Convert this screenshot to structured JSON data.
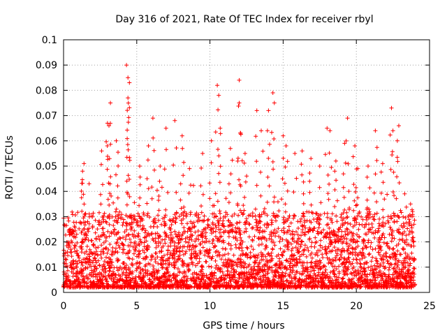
{
  "chart_data": {
    "type": "scatter",
    "title": "Day 316 of 2021, Rate Of TEC Index for receiver rbyl",
    "xlabel": "GPS time / hours",
    "ylabel": "ROTI / TECUs",
    "xlim": [
      0,
      25
    ],
    "ylim": [
      0,
      0.1
    ],
    "xticks": [
      "0",
      "5",
      "10",
      "15",
      "20",
      "25"
    ],
    "yticks": [
      "0",
      "0.01",
      "0.02",
      "0.03",
      "0.04",
      "0.05",
      "0.06",
      "0.07",
      "0.08",
      "0.09",
      "0.1"
    ],
    "grid": true,
    "marker": "+",
    "color": "#ff0000",
    "x_data_range": [
      0,
      24
    ],
    "peak_points": [
      {
        "x": 0.5,
        "y": 0.025
      },
      {
        "x": 1.4,
        "y": 0.051
      },
      {
        "x": 1.3,
        "y": 0.048
      },
      {
        "x": 2.6,
        "y": 0.056
      },
      {
        "x": 3.0,
        "y": 0.067
      },
      {
        "x": 3.2,
        "y": 0.075
      },
      {
        "x": 3.1,
        "y": 0.066
      },
      {
        "x": 3.6,
        "y": 0.06
      },
      {
        "x": 4.3,
        "y": 0.09
      },
      {
        "x": 4.4,
        "y": 0.085
      },
      {
        "x": 4.5,
        "y": 0.083
      },
      {
        "x": 4.4,
        "y": 0.077
      },
      {
        "x": 5.2,
        "y": 0.05
      },
      {
        "x": 5.8,
        "y": 0.058
      },
      {
        "x": 6.1,
        "y": 0.069
      },
      {
        "x": 6.6,
        "y": 0.05
      },
      {
        "x": 7.0,
        "y": 0.065
      },
      {
        "x": 7.6,
        "y": 0.068
      },
      {
        "x": 8.1,
        "y": 0.062
      },
      {
        "x": 8.6,
        "y": 0.049
      },
      {
        "x": 9.5,
        "y": 0.055
      },
      {
        "x": 10.1,
        "y": 0.06
      },
      {
        "x": 10.5,
        "y": 0.082
      },
      {
        "x": 10.6,
        "y": 0.078
      },
      {
        "x": 10.7,
        "y": 0.065
      },
      {
        "x": 11.4,
        "y": 0.057
      },
      {
        "x": 12.0,
        "y": 0.084
      },
      {
        "x": 12.0,
        "y": 0.075
      },
      {
        "x": 12.1,
        "y": 0.063
      },
      {
        "x": 12.4,
        "y": 0.055
      },
      {
        "x": 13.2,
        "y": 0.072
      },
      {
        "x": 13.5,
        "y": 0.064
      },
      {
        "x": 14.0,
        "y": 0.072
      },
      {
        "x": 14.3,
        "y": 0.079
      },
      {
        "x": 14.4,
        "y": 0.075
      },
      {
        "x": 15.0,
        "y": 0.062
      },
      {
        "x": 15.2,
        "y": 0.058
      },
      {
        "x": 15.8,
        "y": 0.055
      },
      {
        "x": 16.3,
        "y": 0.056
      },
      {
        "x": 16.9,
        "y": 0.053
      },
      {
        "x": 17.5,
        "y": 0.05
      },
      {
        "x": 18.0,
        "y": 0.065
      },
      {
        "x": 18.2,
        "y": 0.064
      },
      {
        "x": 18.6,
        "y": 0.052
      },
      {
        "x": 19.2,
        "y": 0.059
      },
      {
        "x": 19.4,
        "y": 0.069
      },
      {
        "x": 19.9,
        "y": 0.058
      },
      {
        "x": 20.1,
        "y": 0.049
      },
      {
        "x": 20.8,
        "y": 0.05
      },
      {
        "x": 21.3,
        "y": 0.064
      },
      {
        "x": 21.8,
        "y": 0.051
      },
      {
        "x": 22.4,
        "y": 0.073
      },
      {
        "x": 22.5,
        "y": 0.064
      },
      {
        "x": 22.9,
        "y": 0.066
      },
      {
        "x": 22.8,
        "y": 0.06
      },
      {
        "x": 23.3,
        "y": 0.039
      },
      {
        "x": 23.7,
        "y": 0.035
      }
    ],
    "background_band": {
      "x_step_hours": 0.02,
      "y_min": 0.002,
      "y_typical_max": 0.03
    }
  }
}
